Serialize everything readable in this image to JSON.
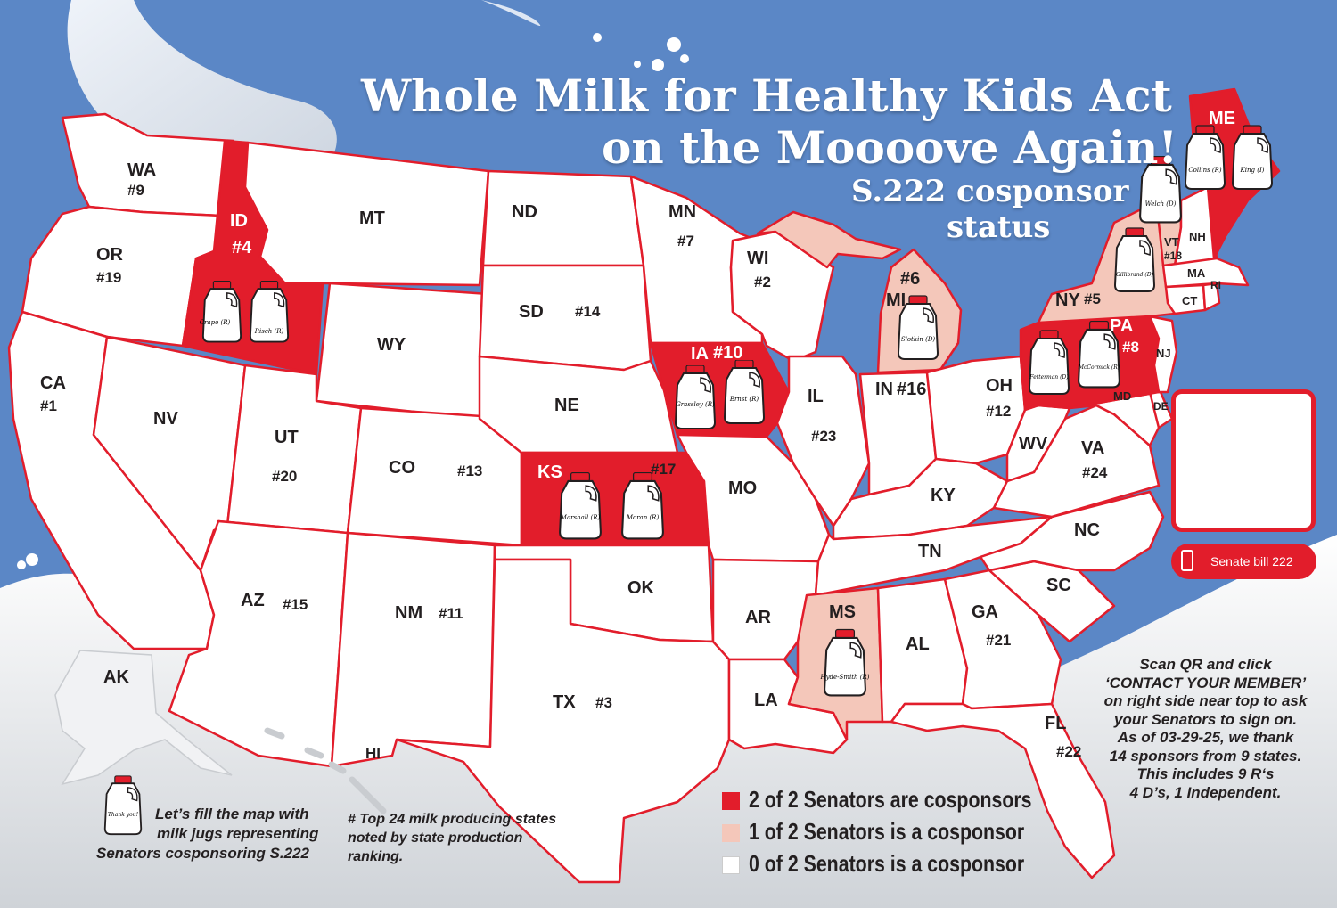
{
  "title": {
    "line1": "Whole Milk for Healthy Kids Act",
    "line2": "on the Moooove Again!",
    "line3": "S.222 cosponsor",
    "line4": "status"
  },
  "colors": {
    "background": "#5b87c6",
    "two_cosponsors": "#e21d2b",
    "one_cosponsor": "#f4c7ba",
    "zero_cosponsors": "#ffffff",
    "border": "#e21d2b"
  },
  "states": {
    "WA": {
      "abbr": "WA",
      "rank": "#9",
      "cosponsors": 0
    },
    "OR": {
      "abbr": "OR",
      "rank": "#19",
      "cosponsors": 0
    },
    "CA": {
      "abbr": "CA",
      "rank": "#1",
      "cosponsors": 0
    },
    "ID": {
      "abbr": "ID",
      "rank": "#4",
      "cosponsors": 2,
      "senators": [
        "Crapo (R)",
        "Risch (R)"
      ]
    },
    "NV": {
      "abbr": "NV",
      "cosponsors": 0
    },
    "MT": {
      "abbr": "MT",
      "cosponsors": 0
    },
    "WY": {
      "abbr": "WY",
      "cosponsors": 0
    },
    "UT": {
      "abbr": "UT",
      "rank": "#20",
      "cosponsors": 0
    },
    "AZ": {
      "abbr": "AZ",
      "rank": "#15",
      "cosponsors": 0
    },
    "CO": {
      "abbr": "CO",
      "rank": "#13",
      "cosponsors": 0
    },
    "NM": {
      "abbr": "NM",
      "rank": "#11",
      "cosponsors": 0
    },
    "ND": {
      "abbr": "ND",
      "cosponsors": 0
    },
    "SD": {
      "abbr": "SD",
      "rank": "#14",
      "cosponsors": 0
    },
    "NE": {
      "abbr": "NE",
      "cosponsors": 0
    },
    "KS": {
      "abbr": "KS",
      "rank": "#17",
      "cosponsors": 2,
      "senators": [
        "Marshall (R)",
        "Moran (R)"
      ]
    },
    "OK": {
      "abbr": "OK",
      "cosponsors": 0
    },
    "TX": {
      "abbr": "TX",
      "rank": "#3",
      "cosponsors": 0
    },
    "MN": {
      "abbr": "MN",
      "rank": "#7",
      "cosponsors": 0
    },
    "IA": {
      "abbr": "IA",
      "rank": "#10",
      "cosponsors": 2,
      "senators": [
        "Grassley (R)",
        "Ernst (R)"
      ]
    },
    "MO": {
      "abbr": "MO",
      "cosponsors": 0
    },
    "AR": {
      "abbr": "AR",
      "cosponsors": 0
    },
    "LA": {
      "abbr": "LA",
      "cosponsors": 0
    },
    "WI": {
      "abbr": "WI",
      "rank": "#2",
      "cosponsors": 0
    },
    "IL": {
      "abbr": "IL",
      "rank": "#23",
      "cosponsors": 0
    },
    "MI": {
      "abbr": "MI",
      "rank": "#6",
      "cosponsors": 1,
      "senators": [
        "Slotkin (D)"
      ]
    },
    "IN": {
      "abbr": "IN",
      "rank": "#16",
      "cosponsors": 0
    },
    "OH": {
      "abbr": "OH",
      "rank": "#12",
      "cosponsors": 0
    },
    "KY": {
      "abbr": "KY",
      "cosponsors": 0
    },
    "TN": {
      "abbr": "TN",
      "cosponsors": 0
    },
    "MS": {
      "abbr": "MS",
      "cosponsors": 1,
      "senators": [
        "Hyde-Smith (R)"
      ]
    },
    "AL": {
      "abbr": "AL",
      "cosponsors": 0
    },
    "GA": {
      "abbr": "GA",
      "rank": "#21",
      "cosponsors": 0
    },
    "FL": {
      "abbr": "FL",
      "rank": "#22",
      "cosponsors": 0
    },
    "SC": {
      "abbr": "SC",
      "cosponsors": 0
    },
    "NC": {
      "abbr": "NC",
      "cosponsors": 0
    },
    "VA": {
      "abbr": "VA",
      "rank": "#24",
      "cosponsors": 0
    },
    "WV": {
      "abbr": "WV",
      "cosponsors": 0
    },
    "MD": {
      "abbr": "MD",
      "cosponsors": 0
    },
    "DE": {
      "abbr": "DE",
      "cosponsors": 0
    },
    "PA": {
      "abbr": "PA",
      "rank": "#8",
      "cosponsors": 2,
      "senators": [
        "Fetterman (D)",
        "McCormick (R)"
      ]
    },
    "NJ": {
      "abbr": "NJ",
      "cosponsors": 0
    },
    "NY": {
      "abbr": "NY",
      "rank": "#5",
      "cosponsors": 1,
      "senators": [
        "Gillibrand (D)"
      ]
    },
    "VT": {
      "abbr": "VT",
      "rank": "#18",
      "cosponsors": 1,
      "senators": [
        "Welch (D)"
      ]
    },
    "NH": {
      "abbr": "NH",
      "cosponsors": 0
    },
    "MA": {
      "abbr": "MA",
      "cosponsors": 0
    },
    "CT": {
      "abbr": "CT",
      "cosponsors": 0
    },
    "RI": {
      "abbr": "RI",
      "cosponsors": 0
    },
    "ME": {
      "abbr": "ME",
      "cosponsors": 2,
      "senators": [
        "Collins (R)",
        "King (I)"
      ]
    },
    "AK": {
      "abbr": "AK",
      "cosponsors": 0
    },
    "HI": {
      "abbr": "HI",
      "cosponsors": 0
    }
  },
  "qr": {
    "pill_label": "Senate bill 222",
    "icon": "phone-icon"
  },
  "scan_note": [
    "Scan QR and click",
    "‘CONTACT YOUR MEMBER’",
    "on right side near top to ask",
    "your Senators to sign on.",
    "As of 03-29-25, we thank",
    "14 sponsors from 9 states.",
    "This includes 9 R‘s",
    "4 D’s, 1 Independent."
  ],
  "fill_note": {
    "jug_label": "Thank you!",
    "lines": [
      "Let’s fill the map with",
      "milk jugs representing",
      "Senators cosponsoring S.222"
    ]
  },
  "top24_note": [
    "# Top 24 milk producing states",
    "noted by state production",
    "ranking."
  ],
  "legend": [
    {
      "label": "2 of 2 Senators are cosponsors",
      "color": "#e21d2b"
    },
    {
      "label": "1 of 2 Senators is a cosponsor",
      "color": "#f4c7ba"
    },
    {
      "label": "0 of 2 Senators is a cosponsor",
      "color": "#ffffff"
    }
  ]
}
